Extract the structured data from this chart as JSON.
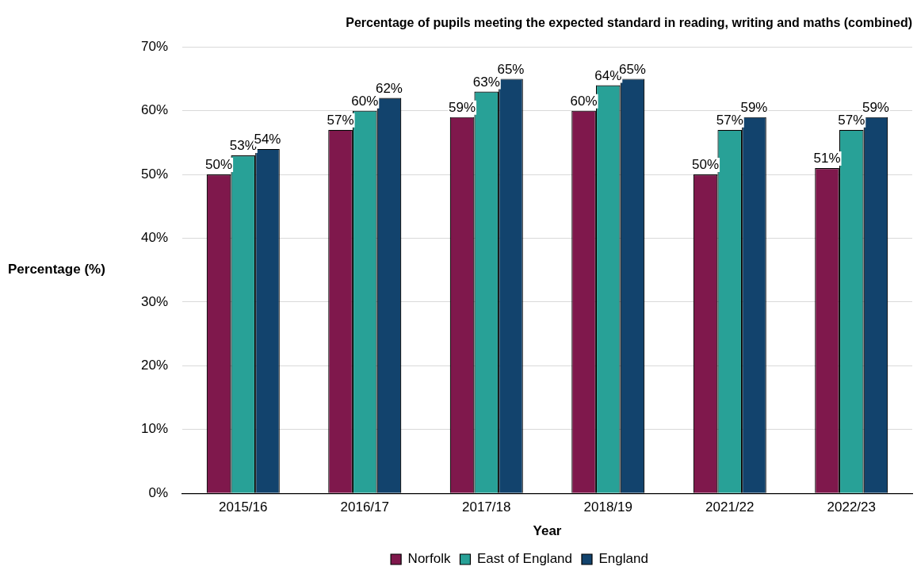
{
  "chart_data": {
    "type": "bar",
    "title": "Percentage of pupils meeting the expected standard in reading, writing and maths (combined)",
    "xlabel": "Year",
    "ylabel": "Percentage (%)",
    "categories": [
      "2015/16",
      "2016/17",
      "2017/18",
      "2018/19",
      "2021/22",
      "2022/23"
    ],
    "series": [
      {
        "name": "Norfolk",
        "color": "#7f184c",
        "values": [
          50,
          57,
          59,
          60,
          50,
          51
        ],
        "value_labels": [
          "50%",
          "57%",
          "59%",
          "60%",
          "50%",
          "51%"
        ]
      },
      {
        "name": "East of England",
        "color": "#28a197",
        "values": [
          53,
          60,
          63,
          64,
          57,
          57
        ],
        "value_labels": [
          "53%",
          "60%",
          "63%",
          "64%",
          "57%",
          "57%"
        ]
      },
      {
        "name": "England",
        "color": "#12436d",
        "values": [
          54,
          62,
          65,
          65,
          59,
          59
        ],
        "value_labels": [
          "54%",
          "62%",
          "65%",
          "65%",
          "59%",
          "59%"
        ]
      }
    ],
    "ylim": [
      0,
      70
    ],
    "yticks": [
      {
        "value": 0,
        "label": "0%"
      },
      {
        "value": 10,
        "label": "10%"
      },
      {
        "value": 20,
        "label": "20%"
      },
      {
        "value": 30,
        "label": "30%"
      },
      {
        "value": 40,
        "label": "40%"
      },
      {
        "value": 50,
        "label": "50%"
      },
      {
        "value": 60,
        "label": "60%"
      },
      {
        "value": 70,
        "label": "70%"
      }
    ],
    "grid": "y",
    "legend": "bottom"
  }
}
